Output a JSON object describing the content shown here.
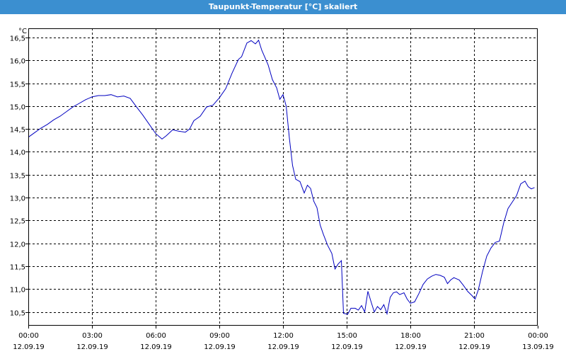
{
  "window": {
    "title": "Taupunkt-Temperatur [°C] skaliert"
  },
  "colors": {
    "titlebar": "#3b8fd0",
    "line": "#0000c0",
    "grid": "#000000",
    "background": "#ffffff"
  },
  "chart_data": {
    "type": "line",
    "title": "Taupunkt-Temperatur [°C] skaliert",
    "yunit": "°C",
    "grid": true,
    "xlim": [
      0,
      24
    ],
    "ylim": [
      10.2,
      16.7
    ],
    "yticks": [
      "10,5",
      "11,0",
      "11,5",
      "12,0",
      "12,5",
      "13,0",
      "13,5",
      "14,0",
      "14,5",
      "15,0",
      "15,5",
      "16,0",
      "16,5"
    ],
    "ytick_values": [
      10.5,
      11.0,
      11.5,
      12.0,
      12.5,
      13.0,
      13.5,
      14.0,
      14.5,
      15.0,
      15.5,
      16.0,
      16.5
    ],
    "xticks": [
      {
        "time": "00:00",
        "date": "12.09.19"
      },
      {
        "time": "03:00",
        "date": "12.09.19"
      },
      {
        "time": "06:00",
        "date": "12.09.19"
      },
      {
        "time": "09:00",
        "date": "12.09.19"
      },
      {
        "time": "12:00",
        "date": "12.09.19"
      },
      {
        "time": "15:00",
        "date": "12.09.19"
      },
      {
        "time": "18:00",
        "date": "12.09.19"
      },
      {
        "time": "21:00",
        "date": "12.09.19"
      },
      {
        "time": "00:00",
        "date": "13.09.19"
      }
    ],
    "xtick_values": [
      0,
      3,
      6,
      9,
      12,
      15,
      18,
      21,
      24
    ],
    "series": [
      {
        "points": [
          [
            0.0,
            14.32
          ],
          [
            0.3,
            14.42
          ],
          [
            0.6,
            14.52
          ],
          [
            0.9,
            14.6
          ],
          [
            1.2,
            14.7
          ],
          [
            1.5,
            14.78
          ],
          [
            1.8,
            14.88
          ],
          [
            2.1,
            14.98
          ],
          [
            2.4,
            15.06
          ],
          [
            2.7,
            15.14
          ],
          [
            3.0,
            15.2
          ],
          [
            3.3,
            15.23
          ],
          [
            3.6,
            15.23
          ],
          [
            3.9,
            15.25
          ],
          [
            4.2,
            15.2
          ],
          [
            4.5,
            15.22
          ],
          [
            4.8,
            15.17
          ],
          [
            5.1,
            14.98
          ],
          [
            5.4,
            14.8
          ],
          [
            5.7,
            14.6
          ],
          [
            6.0,
            14.4
          ],
          [
            6.3,
            14.28
          ],
          [
            6.5,
            14.35
          ],
          [
            6.8,
            14.48
          ],
          [
            7.1,
            14.45
          ],
          [
            7.4,
            14.43
          ],
          [
            7.6,
            14.5
          ],
          [
            7.8,
            14.68
          ],
          [
            8.1,
            14.78
          ],
          [
            8.4,
            14.98
          ],
          [
            8.7,
            15.02
          ],
          [
            9.0,
            15.18
          ],
          [
            9.3,
            15.38
          ],
          [
            9.6,
            15.72
          ],
          [
            9.9,
            16.02
          ],
          [
            10.05,
            16.08
          ],
          [
            10.3,
            16.38
          ],
          [
            10.5,
            16.43
          ],
          [
            10.7,
            16.36
          ],
          [
            10.85,
            16.44
          ],
          [
            11.0,
            16.22
          ],
          [
            11.3,
            15.9
          ],
          [
            11.5,
            15.58
          ],
          [
            11.7,
            15.4
          ],
          [
            11.85,
            15.15
          ],
          [
            12.0,
            15.25
          ],
          [
            12.15,
            15.0
          ],
          [
            12.3,
            14.3
          ],
          [
            12.45,
            13.7
          ],
          [
            12.6,
            13.4
          ],
          [
            12.8,
            13.35
          ],
          [
            13.0,
            13.1
          ],
          [
            13.15,
            13.27
          ],
          [
            13.3,
            13.2
          ],
          [
            13.45,
            12.92
          ],
          [
            13.6,
            12.78
          ],
          [
            13.75,
            12.4
          ],
          [
            13.9,
            12.2
          ],
          [
            14.1,
            11.96
          ],
          [
            14.3,
            11.78
          ],
          [
            14.45,
            11.44
          ],
          [
            14.6,
            11.55
          ],
          [
            14.75,
            11.62
          ],
          [
            14.85,
            10.47
          ],
          [
            15.05,
            10.45
          ],
          [
            15.2,
            10.58
          ],
          [
            15.4,
            10.58
          ],
          [
            15.55,
            10.54
          ],
          [
            15.7,
            10.64
          ],
          [
            15.85,
            10.5
          ],
          [
            16.0,
            10.95
          ],
          [
            16.15,
            10.72
          ],
          [
            16.3,
            10.5
          ],
          [
            16.45,
            10.62
          ],
          [
            16.6,
            10.55
          ],
          [
            16.75,
            10.66
          ],
          [
            16.9,
            10.46
          ],
          [
            17.05,
            10.82
          ],
          [
            17.2,
            10.92
          ],
          [
            17.35,
            10.94
          ],
          [
            17.5,
            10.88
          ],
          [
            17.7,
            10.92
          ],
          [
            17.85,
            10.78
          ],
          [
            18.0,
            10.69
          ],
          [
            18.2,
            10.72
          ],
          [
            18.4,
            10.9
          ],
          [
            18.6,
            11.1
          ],
          [
            18.8,
            11.22
          ],
          [
            19.0,
            11.28
          ],
          [
            19.2,
            11.32
          ],
          [
            19.4,
            11.3
          ],
          [
            19.6,
            11.26
          ],
          [
            19.75,
            11.12
          ],
          [
            19.9,
            11.2
          ],
          [
            20.05,
            11.25
          ],
          [
            20.3,
            11.2
          ],
          [
            20.5,
            11.08
          ],
          [
            20.7,
            10.95
          ],
          [
            20.9,
            10.86
          ],
          [
            21.05,
            10.78
          ],
          [
            21.2,
            10.98
          ],
          [
            21.4,
            11.38
          ],
          [
            21.6,
            11.72
          ],
          [
            21.8,
            11.9
          ],
          [
            22.0,
            12.02
          ],
          [
            22.2,
            12.05
          ],
          [
            22.4,
            12.45
          ],
          [
            22.6,
            12.76
          ],
          [
            22.8,
            12.9
          ],
          [
            23.0,
            13.04
          ],
          [
            23.2,
            13.3
          ],
          [
            23.4,
            13.36
          ],
          [
            23.55,
            13.24
          ],
          [
            23.7,
            13.19
          ],
          [
            23.85,
            13.22
          ]
        ]
      }
    ]
  }
}
